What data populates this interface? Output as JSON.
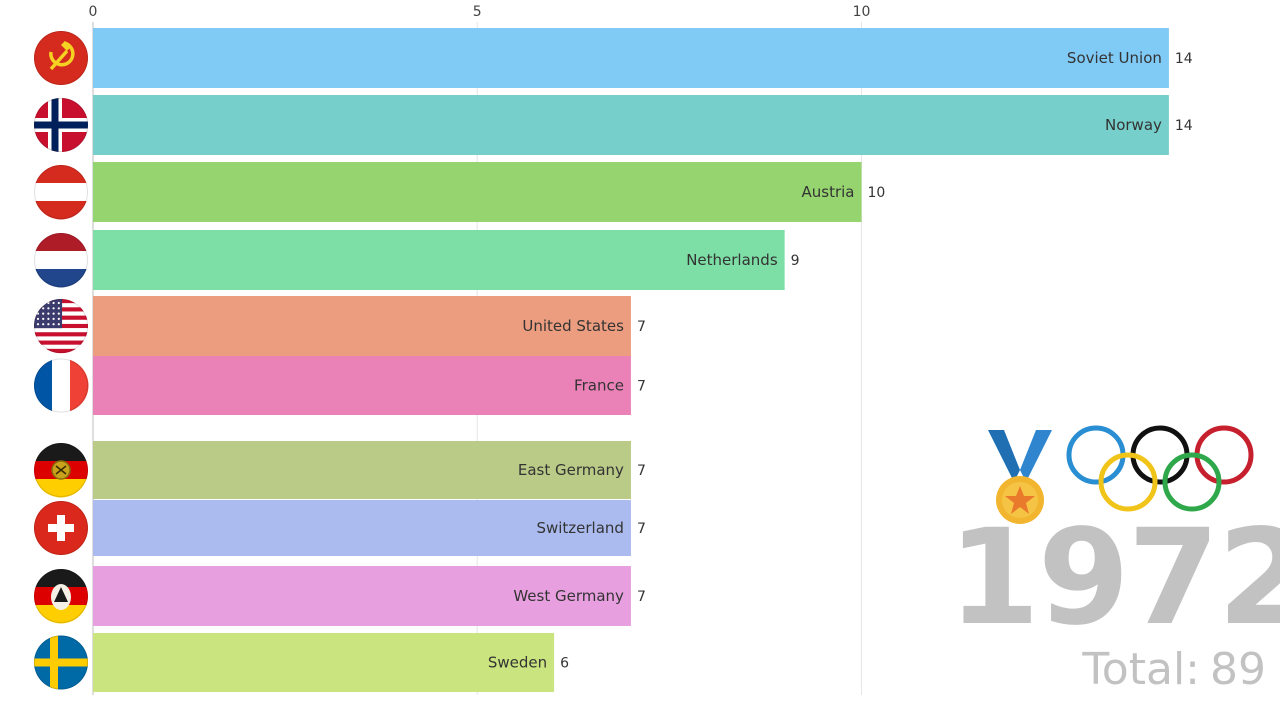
{
  "chart_data": {
    "type": "bar",
    "orientation": "horizontal",
    "x_ticks": [
      0,
      5,
      10
    ],
    "xlim": [
      0,
      15
    ],
    "grid": true,
    "legend": "none",
    "bars": [
      {
        "name": "Soviet Union",
        "value": 14,
        "color": "#80caf6",
        "flag": "soviet-union-flag-icon"
      },
      {
        "name": "Norway",
        "value": 14,
        "color": "#76cfcb",
        "flag": "norway-flag-icon"
      },
      {
        "name": "Austria",
        "value": 10,
        "color": "#96d470",
        "flag": "austria-flag-icon"
      },
      {
        "name": "Netherlands",
        "value": 9,
        "color": "#7ddea6",
        "flag": "netherlands-flag-icon"
      },
      {
        "name": "United States",
        "value": 7,
        "color": "#ec9d7f",
        "flag": "united-states-flag-icon"
      },
      {
        "name": "France",
        "value": 7,
        "color": "#ea82b8",
        "flag": "france-flag-icon"
      },
      {
        "name": "East Germany",
        "value": 7,
        "color": "#b9cb87",
        "flag": "east-germany-flag-icon"
      },
      {
        "name": "Switzerland",
        "value": 7,
        "color": "#abbbef",
        "flag": "switzerland-flag-icon"
      },
      {
        "name": "West Germany",
        "value": 7,
        "color": "#e89fe0",
        "flag": "west-germany-flag-icon"
      },
      {
        "name": "Sweden",
        "value": 6,
        "color": "#cae47f",
        "flag": "sweden-flag-icon"
      }
    ]
  },
  "overlay": {
    "year": "1972",
    "total_prefix": "Total:",
    "total_value": "89",
    "icons": [
      "medal-icon",
      "olympic-rings-icon"
    ]
  }
}
